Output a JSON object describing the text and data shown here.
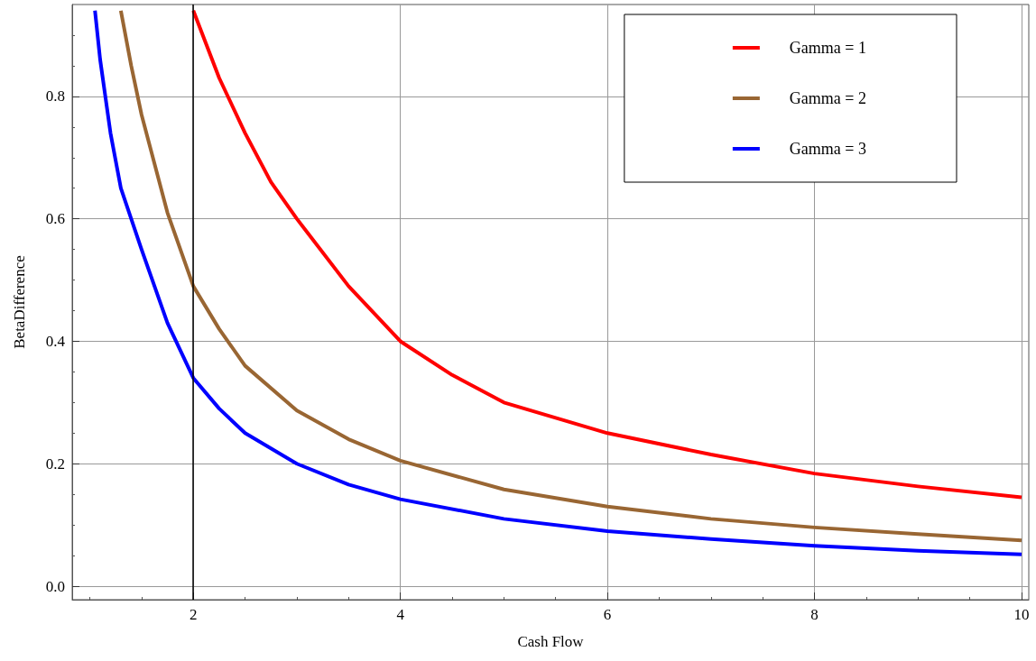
{
  "chart_data": {
    "type": "line",
    "xlabel": "Cash Flow",
    "ylabel": "BetaDifference",
    "xlim": [
      0.83,
      10.07
    ],
    "xticks": [
      2,
      4,
      6,
      8,
      10
    ],
    "ylim": [
      -0.022,
      0.95
    ],
    "yticks": [
      {
        "value": 0,
        "label": "0.0"
      },
      0.2,
      0.4,
      0.6,
      0.8
    ],
    "grid": true,
    "legend": "top right",
    "marker": "none",
    "line_style": "solid",
    "ref_lines": [
      {
        "axis": "x",
        "value": 2,
        "color": "#000000"
      }
    ],
    "series": [
      {
        "name": "Gamma = 1",
        "color": "#ff0000",
        "x": [
          2,
          2.25,
          2.5,
          2.75,
          3,
          3.5,
          4,
          4.5,
          5,
          6,
          7,
          8,
          9,
          10
        ],
        "values": [
          0.94,
          0.83,
          0.74,
          0.66,
          0.6,
          0.49,
          0.4,
          0.345,
          0.3,
          0.25,
          0.215,
          0.184,
          0.163,
          0.145
        ]
      },
      {
        "name": "Gamma = 2",
        "color": "#996633",
        "x": [
          1.3,
          1.4,
          1.5,
          1.75,
          2,
          2.25,
          2.5,
          3,
          3.5,
          4,
          5,
          6,
          7,
          8,
          9,
          10
        ],
        "values": [
          0.94,
          0.85,
          0.77,
          0.61,
          0.49,
          0.42,
          0.36,
          0.287,
          0.24,
          0.205,
          0.158,
          0.13,
          0.11,
          0.096,
          0.085,
          0.075
        ]
      },
      {
        "name": "Gamma = 3",
        "color": "#0000ff",
        "x": [
          1.05,
          1.1,
          1.2,
          1.3,
          1.5,
          1.75,
          2,
          2.25,
          2.5,
          3,
          3.5,
          4,
          5,
          6,
          7,
          8,
          9,
          10
        ],
        "values": [
          0.94,
          0.86,
          0.74,
          0.65,
          0.55,
          0.43,
          0.34,
          0.29,
          0.25,
          0.2,
          0.166,
          0.142,
          0.11,
          0.09,
          0.077,
          0.066,
          0.058,
          0.052
        ]
      }
    ]
  }
}
